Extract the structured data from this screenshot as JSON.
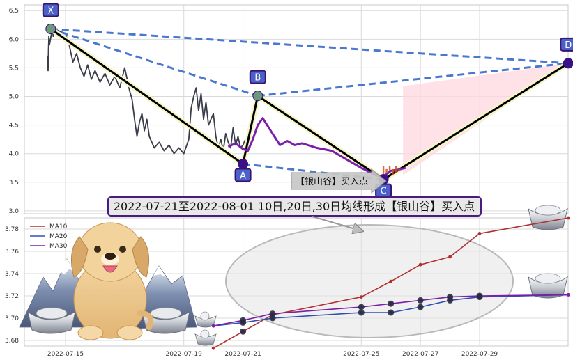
{
  "banner": "2022-07-21至2022-08-01 10日,20日,30日均线形成【银山谷】买入点",
  "signal_label": "【银山谷】买入点",
  "colors": {
    "price": "#3a3d4a",
    "pattern_line": "#000000",
    "pattern_glow": "#f5f5c8",
    "dashed": "#4a78d0",
    "point_fill": "#4a62c8",
    "point_border": "#3a1070",
    "fill_zone": "#ffd8e0",
    "ma10": "#b03030",
    "ma20": "#3050b0",
    "ma30": "#7a1fa8",
    "recent_bars": "#d05020"
  },
  "chart_data": [
    {
      "type": "line",
      "panel": "price",
      "x_range": [
        "2022-07-14",
        "2022-08-01"
      ],
      "ylim": [
        2.95,
        6.6
      ],
      "yticks": [
        3.0,
        3.5,
        4.0,
        4.5,
        5.0,
        5.5,
        6.0,
        6.5
      ],
      "ytick_labels": [
        "3.0",
        "3.5",
        "4.0",
        "4.5",
        "5.0",
        "5.5",
        "6.0",
        "6.5"
      ],
      "price_series": [
        [
          "2022-07-14 09:30",
          5.7
        ],
        [
          "2022-07-14 09:50",
          5.45
        ],
        [
          "2022-07-14 10:10",
          5.8
        ],
        [
          "2022-07-14 10:30",
          6.05
        ],
        [
          "2022-07-14 11:00",
          5.9
        ],
        [
          "2022-07-14 13:00",
          6.15
        ],
        [
          "2022-07-14 13:30",
          6.22
        ],
        [
          "2022-07-14 14:00",
          6.05
        ],
        [
          "2022-07-14 14:30",
          6.18
        ],
        [
          "2022-07-15 00:00",
          6.1
        ],
        [
          "2022-07-15 03:00",
          5.9
        ],
        [
          "2022-07-15 06:00",
          5.6
        ],
        [
          "2022-07-15 09:00",
          5.75
        ],
        [
          "2022-07-15 12:00",
          5.5
        ],
        [
          "2022-07-15 15:00",
          5.35
        ],
        [
          "2022-07-15 18:00",
          5.55
        ],
        [
          "2022-07-15 21:00",
          5.3
        ],
        [
          "2022-07-16 00:00",
          5.45
        ],
        [
          "2022-07-16 04:00",
          5.25
        ],
        [
          "2022-07-16 08:00",
          5.4
        ],
        [
          "2022-07-16 12:00",
          5.2
        ],
        [
          "2022-07-16 16:00",
          5.35
        ],
        [
          "2022-07-16 20:00",
          5.15
        ],
        [
          "2022-07-17 00:00",
          5.5
        ],
        [
          "2022-07-17 02:00",
          5.3
        ],
        [
          "2022-07-17 04:00",
          5.1
        ],
        [
          "2022-07-17 06:00",
          4.95
        ],
        [
          "2022-07-17 08:00",
          4.6
        ],
        [
          "2022-07-17 10:00",
          4.3
        ],
        [
          "2022-07-17 12:00",
          4.55
        ],
        [
          "2022-07-17 14:00",
          4.7
        ],
        [
          "2022-07-17 16:00",
          4.4
        ],
        [
          "2022-07-17 18:00",
          4.6
        ],
        [
          "2022-07-17 20:00",
          4.3
        ],
        [
          "2022-07-18 00:00",
          4.1
        ],
        [
          "2022-07-18 04:00",
          4.2
        ],
        [
          "2022-07-18 08:00",
          4.05
        ],
        [
          "2022-07-18 12:00",
          4.15
        ],
        [
          "2022-07-18 16:00",
          4.0
        ],
        [
          "2022-07-18 20:00",
          4.1
        ],
        [
          "2022-07-19 00:00",
          4.0
        ],
        [
          "2022-07-19 04:00",
          4.25
        ],
        [
          "2022-07-19 06:00",
          4.8
        ],
        [
          "2022-07-19 08:00",
          5.0
        ],
        [
          "2022-07-19 10:00",
          5.15
        ],
        [
          "2022-07-19 12:00",
          4.75
        ],
        [
          "2022-07-19 14:00",
          5.05
        ],
        [
          "2022-07-19 16:00",
          4.6
        ],
        [
          "2022-07-19 18:00",
          4.9
        ],
        [
          "2022-07-19 20:00",
          4.5
        ],
        [
          "2022-07-20 00:00",
          4.7
        ],
        [
          "2022-07-20 02:00",
          4.3
        ],
        [
          "2022-07-20 04:00",
          4.1
        ],
        [
          "2022-07-20 06:00",
          4.25
        ],
        [
          "2022-07-20 08:00",
          4.05
        ],
        [
          "2022-07-20 10:00",
          4.35
        ],
        [
          "2022-07-20 12:00",
          4.2
        ],
        [
          "2022-07-20 14:00",
          4.1
        ],
        [
          "2022-07-20 16:00",
          4.45
        ],
        [
          "2022-07-20 18:00",
          4.15
        ],
        [
          "2022-07-20 20:00",
          4.3
        ],
        [
          "2022-07-20 22:00",
          4.1
        ],
        [
          "2022-07-21 00:00",
          4.15
        ],
        [
          "2022-07-21 02:00",
          4.25
        ],
        [
          "2022-07-21 04:00",
          4.15
        ],
        [
          "2022-07-21 06:00",
          4.1
        ]
      ],
      "points": [
        {
          "label": "X",
          "x": "2022-07-14 12:00",
          "y": 6.18
        },
        {
          "label": "A",
          "x": "2022-07-21 00:00",
          "y": 3.82
        },
        {
          "label": "B",
          "x": "2022-07-21 12:00",
          "y": 5.01
        },
        {
          "label": "C",
          "x": "2022-07-25 18:00",
          "y": 3.55
        },
        {
          "label": "D",
          "x": "2022-08-01 00:00",
          "y": 5.58
        }
      ],
      "ma_overlay": [
        [
          "2022-07-20 12:00",
          4.12
        ],
        [
          "2022-07-20 18:00",
          4.18
        ],
        [
          "2022-07-21 00:00",
          4.08
        ],
        [
          "2022-07-21 04:00",
          4.05
        ],
        [
          "2022-07-21 08:00",
          4.25
        ],
        [
          "2022-07-21 12:00",
          4.5
        ],
        [
          "2022-07-21 16:00",
          4.62
        ],
        [
          "2022-07-22 00:00",
          4.35
        ],
        [
          "2022-07-22 06:00",
          4.15
        ],
        [
          "2022-07-22 12:00",
          4.22
        ],
        [
          "2022-07-22 18:00",
          4.15
        ],
        [
          "2022-07-23 00:00",
          4.18
        ],
        [
          "2022-07-23 12:00",
          4.1
        ],
        [
          "2022-07-24 00:00",
          4.05
        ],
        [
          "2022-07-24 12:00",
          3.9
        ],
        [
          "2022-07-25 00:00",
          3.75
        ],
        [
          "2022-07-25 12:00",
          3.62
        ],
        [
          "2022-07-25 18:00",
          3.6
        ],
        [
          "2022-07-26 00:00",
          3.7
        ],
        [
          "2022-07-26 06:00",
          3.72
        ],
        [
          "2022-07-26 12:00",
          3.75
        ]
      ]
    },
    {
      "type": "line",
      "panel": "moving_averages",
      "ylim": [
        3.675,
        3.79
      ],
      "yticks": [
        3.68,
        3.7,
        3.72,
        3.74,
        3.76,
        3.78
      ],
      "ytick_labels": [
        "3.68",
        "3.70",
        "3.72",
        "3.74",
        "3.76",
        "3.78"
      ],
      "xticks": [
        "2022-07-15",
        "2022-07-19",
        "2022-07-21",
        "2022-07-25",
        "2022-07-27",
        "2022-07-29"
      ],
      "xtick_labels": [
        "2022-07-15",
        "2022-07-19",
        "2022-07-21",
        "2022-07-25",
        "2022-07-27",
        "2022-07-29"
      ],
      "legend": [
        "MA10",
        "MA20",
        "MA30"
      ],
      "legend_position": "top-left",
      "x": [
        "2022-07-20",
        "2022-07-21",
        "2022-07-22",
        "2022-07-25",
        "2022-07-26",
        "2022-07-27",
        "2022-07-28",
        "2022-07-29",
        "2022-08-01"
      ],
      "series": [
        {
          "name": "MA10",
          "values": [
            3.673,
            3.688,
            3.703,
            3.719,
            3.733,
            3.748,
            3.755,
            3.776,
            3.79
          ]
        },
        {
          "name": "MA20",
          "values": [
            3.693,
            3.696,
            3.7,
            3.705,
            3.705,
            3.71,
            3.716,
            3.719,
            3.721
          ]
        },
        {
          "name": "MA30",
          "values": [
            3.693,
            3.698,
            3.704,
            3.71,
            3.713,
            3.716,
            3.719,
            3.72,
            3.721
          ]
        }
      ],
      "highlight_points": [
        {
          "series": "MA10",
          "x": "2022-07-21"
        },
        {
          "series": "MA20",
          "x": "2022-07-21"
        },
        {
          "series": "MA30",
          "x": "2022-07-21"
        },
        {
          "series": "MA20",
          "x": "2022-07-22"
        },
        {
          "series": "MA30",
          "x": "2022-07-22"
        },
        {
          "series": "MA20",
          "x": "2022-07-25"
        },
        {
          "series": "MA30",
          "x": "2022-07-25"
        },
        {
          "series": "MA20",
          "x": "2022-07-26"
        },
        {
          "series": "MA30",
          "x": "2022-07-26"
        },
        {
          "series": "MA20",
          "x": "2022-07-27"
        },
        {
          "series": "MA30",
          "x": "2022-07-27"
        },
        {
          "series": "MA20",
          "x": "2022-07-28"
        },
        {
          "series": "MA30",
          "x": "2022-07-28"
        },
        {
          "series": "MA20",
          "x": "2022-07-29"
        },
        {
          "series": "MA30",
          "x": "2022-07-29"
        }
      ]
    }
  ]
}
